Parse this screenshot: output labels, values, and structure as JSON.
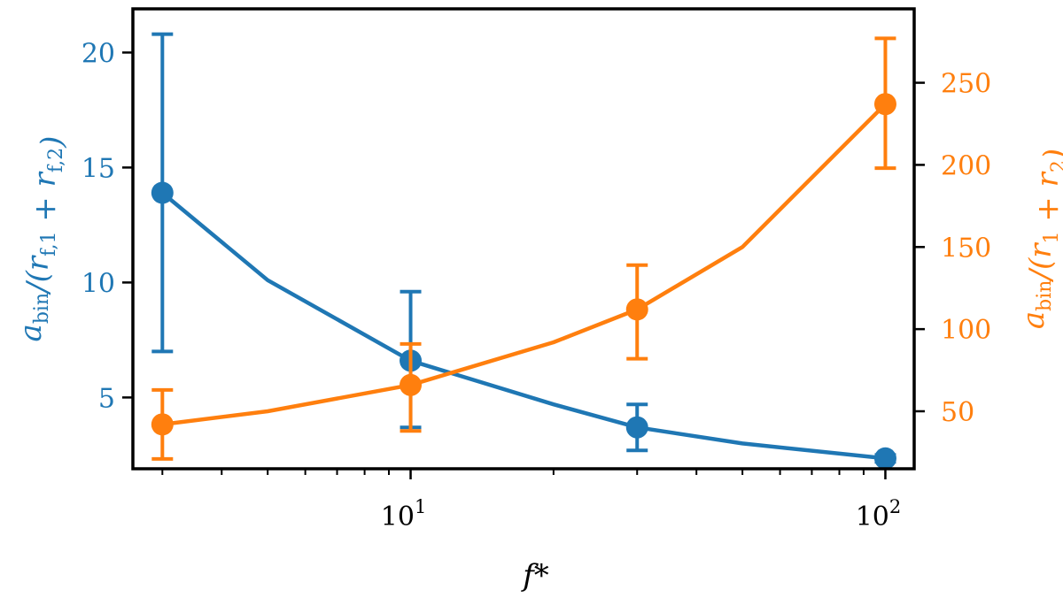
{
  "chart_data": {
    "type": "line",
    "xlabel": "f*",
    "xscale": "log",
    "xlim": [
      2.6,
      115
    ],
    "x_ticks": [
      {
        "value": 10,
        "label_base": "10",
        "label_exp": "1"
      },
      {
        "value": 100,
        "label_base": "10",
        "label_exp": "2"
      }
    ],
    "axes": {
      "left": {
        "label_main": "a",
        "label_sub": "bin",
        "label_rest": "/(r",
        "label_sub1": "f,1",
        "label_plus": " + r",
        "label_sub2": "f,2",
        "label_close": ")",
        "ylim": [
          1.9,
          21.9
        ],
        "ticks": [
          5,
          10,
          15,
          20
        ],
        "color": "#1f77b4"
      },
      "right": {
        "label_main": "a",
        "label_sub": "bin",
        "label_rest": "/(r",
        "label_sub1": "1",
        "label_plus": " + r",
        "label_sub2": "2",
        "label_close": ")",
        "ylim": [
          15,
          295
        ],
        "ticks": [
          50,
          100,
          150,
          200,
          250
        ],
        "color": "#ff7f0e"
      }
    },
    "series": [
      {
        "axis": "left",
        "color": "#1f77b4",
        "points": [
          {
            "x": 3,
            "y": 13.9,
            "err_low": 7.0,
            "err_high": 20.8
          },
          {
            "x": 10,
            "y": 6.6,
            "err_low": 3.7,
            "err_high": 9.6
          },
          {
            "x": 30,
            "y": 3.7,
            "err_low": 2.7,
            "err_high": 4.7
          },
          {
            "x": 100,
            "y": 2.35,
            "err_low": 2.2,
            "err_high": 2.5
          }
        ],
        "fit_curve": {
          "x": [
            3,
            5,
            10,
            20,
            30,
            50,
            100
          ],
          "y": [
            13.9,
            10.1,
            6.6,
            4.7,
            3.7,
            3.0,
            2.35
          ]
        }
      },
      {
        "axis": "right",
        "color": "#ff7f0e",
        "points": [
          {
            "x": 3,
            "y": 42,
            "err_low": 21,
            "err_high": 63
          },
          {
            "x": 10,
            "y": 66,
            "err_low": 38,
            "err_high": 91
          },
          {
            "x": 30,
            "y": 112,
            "err_low": 82,
            "err_high": 139
          },
          {
            "x": 100,
            "y": 237,
            "err_low": 198,
            "err_high": 277
          }
        ],
        "fit_curve": {
          "x": [
            3,
            5,
            10,
            20,
            30,
            50,
            100
          ],
          "y": [
            42,
            50,
            66,
            92,
            112,
            150,
            237
          ]
        }
      }
    ]
  }
}
